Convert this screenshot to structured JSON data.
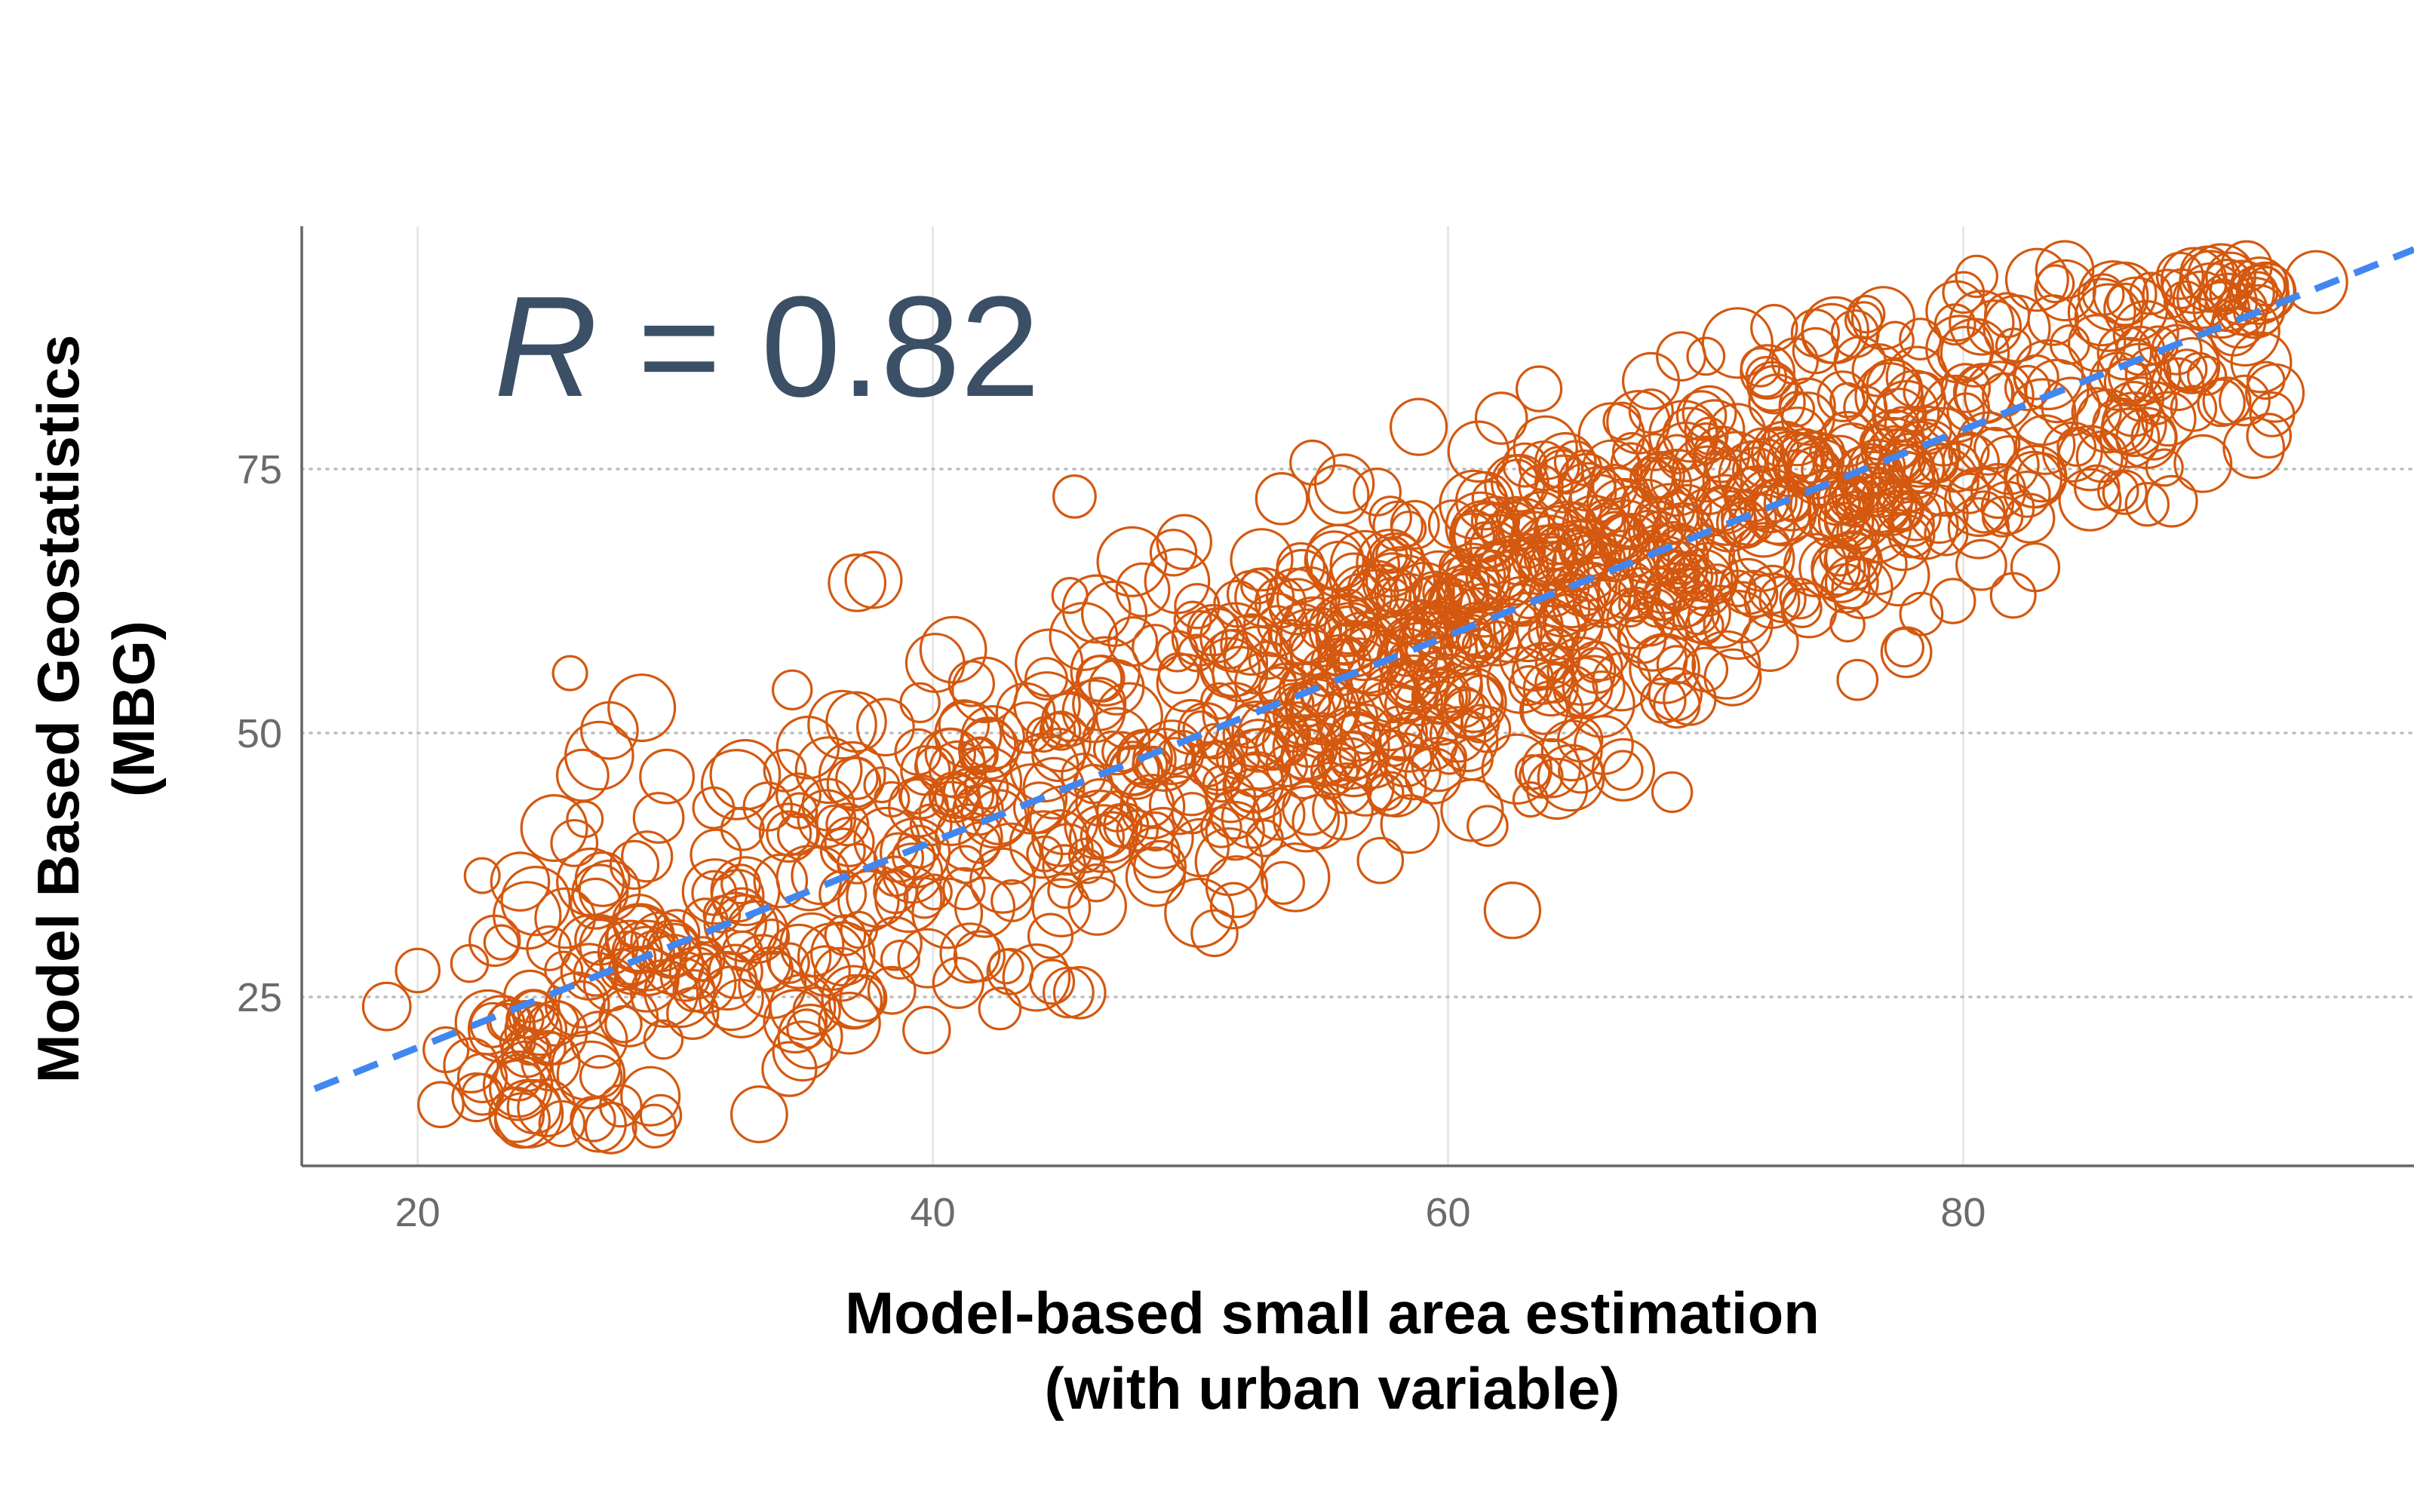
{
  "chart_data": {
    "type": "scatter",
    "title": "",
    "xlabel_lines": [
      "Model-based small area estimation",
      "(with urban variable)"
    ],
    "ylabel_lines": [
      "Model Based Geostatistics",
      "(MBG)"
    ],
    "annotation": {
      "symbol": "R",
      "rest": " = 0.82",
      "r": 0.82
    },
    "xlim": [
      15.5,
      97.5
    ],
    "ylim": [
      9,
      98
    ],
    "x_ticks": [
      20,
      40,
      60,
      80
    ],
    "x_tick_labels": [
      "20",
      "40",
      "60",
      "80"
    ],
    "y_ticks": [
      25,
      50,
      75
    ],
    "y_tick_labels": [
      "25",
      "50",
      "75"
    ],
    "grid": {
      "vertical": "solid-light",
      "horizontal": "dotted"
    },
    "trend_line": {
      "x": [
        16,
        97.5
      ],
      "y": [
        16.3,
        95.8
      ],
      "style": "dashed",
      "color": "#4287f0"
    },
    "point_color": "#d4580f",
    "point_style": "hollow circles, size varies",
    "n_points_approx": 1100,
    "points_sample": [
      [
        18.8,
        24.1
      ],
      [
        20.0,
        27.5
      ],
      [
        20.9,
        14.8
      ],
      [
        21.1,
        20.0
      ],
      [
        25.3,
        41.0
      ],
      [
        25.6,
        13.0
      ],
      [
        25.0,
        14.5
      ],
      [
        37.7,
        64.5
      ],
      [
        42.6,
        23.9
      ],
      [
        43.0,
        27.4
      ],
      [
        45.5,
        72.4
      ],
      [
        45.7,
        25.4
      ],
      [
        62.5,
        33.2
      ],
      [
        68.7,
        44.4
      ],
      [
        79.6,
        62.5
      ],
      [
        91.0,
        94.2
      ],
      [
        93.7,
        92.7
      ],
      [
        92.1,
        82.2
      ],
      [
        87.4,
        78.0
      ],
      [
        82.8,
        65.7
      ]
    ],
    "dense_regions": [
      {
        "cx": 36,
        "cy": 35,
        "sx": 6,
        "sy": 7
      },
      {
        "cx": 57,
        "cy": 60,
        "sx": 6,
        "sy": 10
      },
      {
        "cx": 67,
        "cy": 67,
        "sx": 6,
        "sy": 10
      },
      {
        "cx": 78,
        "cy": 83,
        "sx": 6,
        "sy": 7
      }
    ]
  },
  "colors": {
    "points": "#d4580f",
    "trend": "#4287f0",
    "annotation": "#3b4f66",
    "axis": "#666666",
    "grid": "#e6e6e6"
  }
}
